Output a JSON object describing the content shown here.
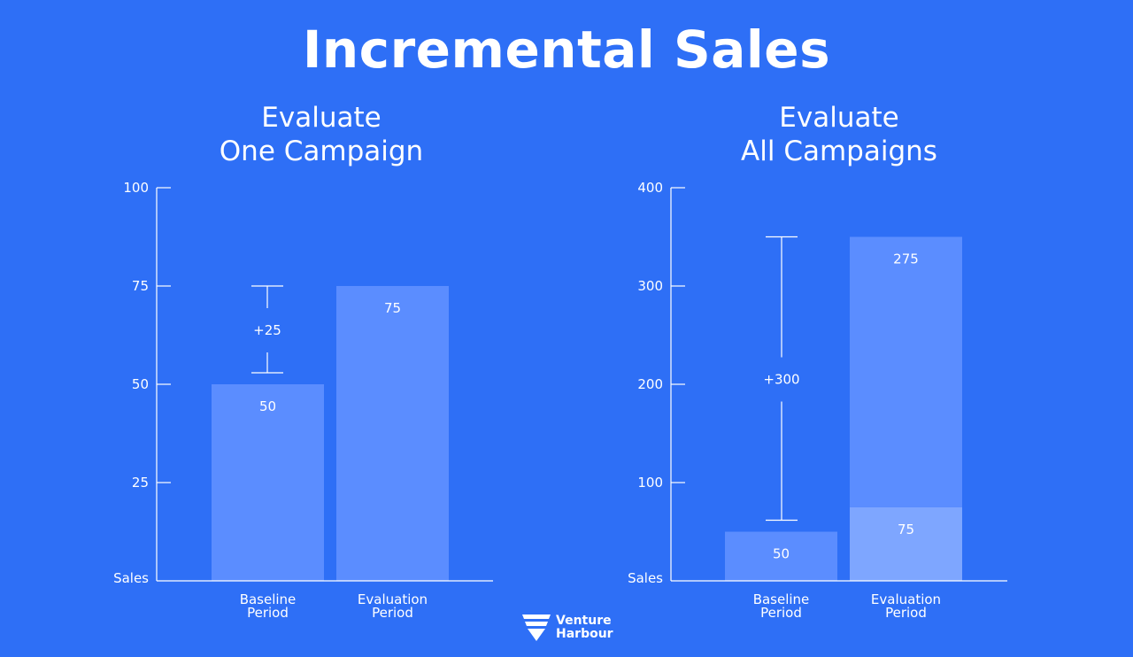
{
  "title": "Incremental Sales",
  "brand": {
    "line1": "Venture",
    "line2": "Harbour",
    "icon": "venture-harbour-logo-icon"
  },
  "colors": {
    "background": "#2e6ff6",
    "bar": "#5b8dff",
    "bar_light": "#7ea6ff",
    "axis": "#ffffff"
  },
  "chart_data": [
    {
      "type": "bar",
      "title_line1": "Evaluate",
      "title_line2": "One Campaign",
      "ylabel": "Sales",
      "ylim": [
        0,
        100
      ],
      "yticks": [
        25,
        50,
        75,
        100
      ],
      "ytick_labels": [
        "25",
        "50",
        "75",
        "100"
      ],
      "categories": [
        {
          "line1": "Baseline",
          "line2": "Period"
        },
        {
          "line1": "Evaluation",
          "line2": "Period"
        }
      ],
      "stacks": [
        [
          {
            "value": 50,
            "label": "50"
          }
        ],
        [
          {
            "value": 75,
            "label": "75"
          }
        ]
      ],
      "annotation": {
        "label": "+25",
        "from": 50,
        "to": 75,
        "category": 0
      }
    },
    {
      "type": "bar",
      "title_line1": "Evaluate",
      "title_line2": "All Campaigns",
      "ylabel": "Sales",
      "ylim": [
        0,
        400
      ],
      "yticks": [
        100,
        200,
        300,
        400
      ],
      "ytick_labels": [
        "100",
        "200",
        "300",
        "400"
      ],
      "categories": [
        {
          "line1": "Baseline",
          "line2": "Period"
        },
        {
          "line1": "Evaluation",
          "line2": "Period"
        }
      ],
      "stacks": [
        [
          {
            "value": 50,
            "label": "50"
          }
        ],
        [
          {
            "value": 75,
            "label": "75",
            "light": true
          },
          {
            "value": 275,
            "label": "275"
          }
        ]
      ],
      "annotation": {
        "label": "+300",
        "from": 50,
        "to": 350,
        "category": 0
      }
    }
  ]
}
